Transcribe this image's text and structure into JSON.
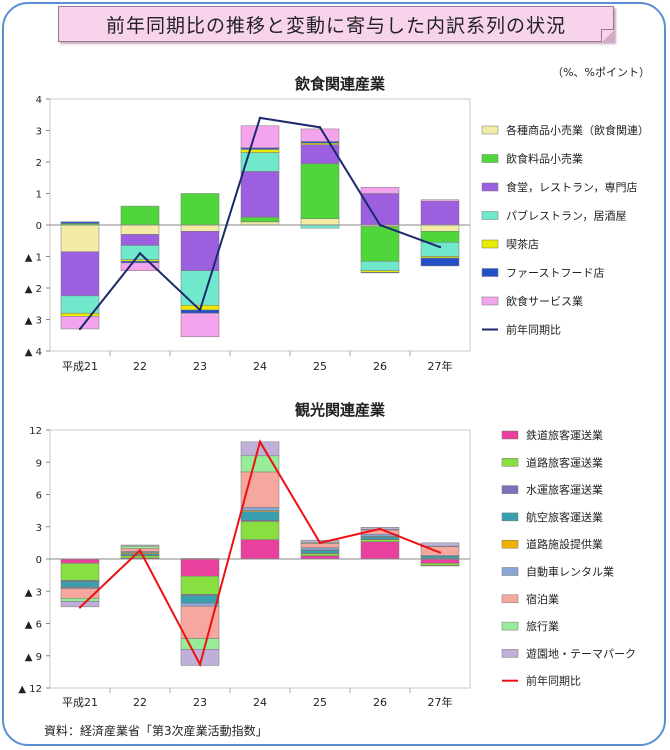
{
  "banner": {
    "title": "前年同期比の推移と変動に寄与した内訳系列の状況"
  },
  "unit_note": "（%、%ポイント）",
  "source_note": "資料：経済産業省「第3次産業活動指数」",
  "chart_data": [
    {
      "type": "bar",
      "stacked": true,
      "title": "飲食関連産業",
      "categories": [
        "平成21",
        "22",
        "23",
        "24",
        "25",
        "26",
        "27年"
      ],
      "ylim": [
        -4,
        4
      ],
      "yticks": [
        -4,
        -3,
        -2,
        -1,
        0,
        1,
        2,
        3,
        4
      ],
      "ytick_labels": [
        "▲ 4",
        "▲ 3",
        "▲ 2",
        "▲ 1",
        "0",
        "1",
        "2",
        "3",
        "4"
      ],
      "legend_position": "right",
      "series": [
        {
          "name": "各種商品小売業（飲食関連）",
          "color": "#f3eca6",
          "values": [
            -0.85,
            -0.3,
            -0.2,
            0.1,
            0.2,
            -0.05,
            -0.2
          ]
        },
        {
          "name": "飲食料品小売業",
          "color": "#4fd63a",
          "values": [
            0.05,
            0.6,
            1.0,
            0.15,
            1.75,
            -1.1,
            -0.35
          ]
        },
        {
          "name": "食堂，レストラン，専門店",
          "color": "#9b5fe0",
          "values": [
            -1.4,
            -0.35,
            -1.25,
            1.45,
            0.6,
            1.0,
            0.75
          ]
        },
        {
          "name": "パブレストラン，居酒屋",
          "color": "#6fe8cc",
          "values": [
            -0.55,
            -0.45,
            -1.1,
            0.6,
            -0.1,
            -0.3,
            -0.45
          ]
        },
        {
          "name": "喫茶店",
          "color": "#eaea00",
          "values": [
            -0.1,
            -0.05,
            -0.15,
            0.1,
            0.05,
            -0.05,
            -0.05
          ]
        },
        {
          "name": "ファーストフード店",
          "color": "#2350c8",
          "values": [
            0.05,
            -0.05,
            -0.1,
            0.05,
            0.05,
            -0.02,
            -0.25
          ]
        },
        {
          "name": "飲食サービス業",
          "color": "#f3a4ec",
          "values": [
            -0.4,
            -0.25,
            -0.75,
            0.7,
            0.4,
            0.2,
            0.05
          ]
        }
      ],
      "line": {
        "name": "前年同期比",
        "color": "#1a2a6b",
        "values": [
          -3.3,
          -0.9,
          -2.7,
          3.4,
          3.1,
          0.0,
          -0.7
        ]
      }
    },
    {
      "type": "bar",
      "stacked": true,
      "title": "観光関連産業",
      "categories": [
        "平成21",
        "22",
        "23",
        "24",
        "25",
        "26",
        "27年"
      ],
      "ylim": [
        -12,
        12
      ],
      "yticks": [
        -12,
        -9,
        -6,
        -3,
        0,
        3,
        6,
        9,
        12
      ],
      "ytick_labels": [
        "▲ 12",
        "▲ 9",
        "▲ 6",
        "▲ 3",
        "0",
        "3",
        "6",
        "9",
        "12"
      ],
      "legend_position": "right",
      "series": [
        {
          "name": "鉄道旅客運送業",
          "color": "#e8409c",
          "values": [
            -0.4,
            0.1,
            -1.6,
            1.8,
            0.3,
            1.6,
            -0.4
          ]
        },
        {
          "name": "道路旅客運送業",
          "color": "#88e040",
          "values": [
            -1.6,
            0.2,
            -1.7,
            1.7,
            0.2,
            0.2,
            -0.2
          ]
        },
        {
          "name": "水運旅客運送業",
          "color": "#8070b8",
          "values": [
            -0.1,
            0.05,
            -0.1,
            0.1,
            0.05,
            0.05,
            0.05
          ]
        },
        {
          "name": "航空旅客運送業",
          "color": "#3aa0b0",
          "values": [
            -0.5,
            0.15,
            -0.7,
            0.8,
            0.25,
            0.2,
            0.2
          ]
        },
        {
          "name": "道路施設提供業",
          "color": "#f0b000",
          "values": [
            -0.05,
            0.1,
            0.05,
            0.1,
            0.05,
            0.05,
            -0.05
          ]
        },
        {
          "name": "自動車レンタル業",
          "color": "#8aa6d6",
          "values": [
            -0.1,
            0.1,
            -0.3,
            0.3,
            0.2,
            0.2,
            0.1
          ]
        },
        {
          "name": "宿泊業",
          "color": "#f6a8a0",
          "values": [
            -0.9,
            0.3,
            -3.0,
            3.3,
            0.4,
            0.4,
            0.8
          ]
        },
        {
          "name": "旅行業",
          "color": "#98ec98",
          "values": [
            -0.3,
            0.2,
            -1.0,
            1.5,
            0.1,
            0.05,
            0.05
          ]
        },
        {
          "name": "遊園地・テーマパーク",
          "color": "#c0b0d8",
          "values": [
            -0.5,
            0.1,
            -1.5,
            1.3,
            0.2,
            0.2,
            0.3
          ]
        }
      ],
      "line": {
        "name": "前年同期比",
        "color": "#ee1111",
        "values": [
          -4.5,
          0.8,
          -9.8,
          10.9,
          1.5,
          2.8,
          0.6
        ]
      }
    }
  ]
}
